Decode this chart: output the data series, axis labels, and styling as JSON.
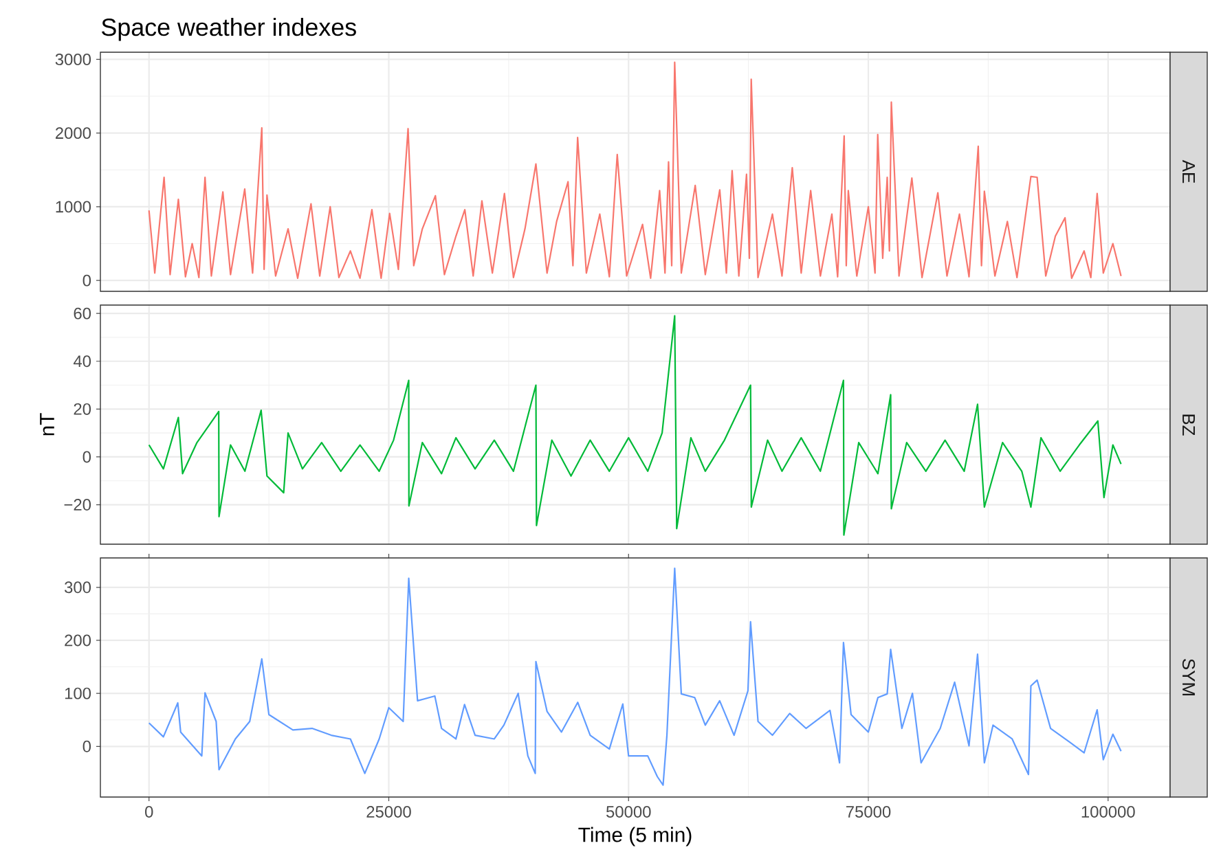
{
  "chart_data": [
    {
      "type": "line",
      "title": "Space weather indexes",
      "tick_labels": "y",
      "grid": true,
      "xlim": [
        -5070,
        106470
      ],
      "xticks": [
        0,
        25000,
        50000,
        75000,
        100000
      ],
      "ylim": [
        -147.5,
        3097.5
      ],
      "yticks": [
        0,
        1000,
        2000,
        3000
      ],
      "x": [
        0,
        600,
        1570,
        2200,
        3060,
        3800,
        4500,
        5200,
        5840,
        6500,
        7700,
        8500,
        9980,
        10800,
        11760,
        12000,
        12300,
        13200,
        14500,
        15500,
        16890,
        17800,
        18890,
        19800,
        21000,
        22000,
        23240,
        24200,
        25090,
        26000,
        27010,
        27600,
        28500,
        29860,
        30800,
        32000,
        32930,
        33800,
        34710,
        35800,
        37060,
        38000,
        39200,
        40340,
        41500,
        42500,
        43690,
        44200,
        44690,
        45600,
        47000,
        48000,
        48820,
        49800,
        51460,
        52300,
        53240,
        53800,
        54170,
        54500,
        54810,
        55500,
        56950,
        58000,
        59510,
        60200,
        60800,
        61500,
        62300,
        62600,
        62790,
        63500,
        65000,
        66000,
        67070,
        68000,
        68990,
        70000,
        71200,
        71800,
        72480,
        72700,
        72910,
        73800,
        75000,
        75700,
        75980,
        76500,
        76970,
        77200,
        77400,
        78200,
        79540,
        80600,
        82250,
        83200,
        84500,
        85500,
        86460,
        86800,
        87100,
        88200,
        89500,
        90500,
        91950,
        92600,
        93500,
        94500,
        95510,
        96200,
        97500,
        98200,
        98860,
        99500,
        100500,
        101350
      ],
      "series": [
        {
          "name": "AE",
          "color": "#f8766d",
          "values": [
            950,
            100,
            1400,
            80,
            1100,
            50,
            500,
            40,
            1400,
            60,
            1200,
            80,
            1240,
            100,
            2070,
            150,
            1160,
            60,
            700,
            30,
            1040,
            60,
            1000,
            40,
            400,
            30,
            960,
            30,
            910,
            150,
            2060,
            200,
            700,
            1150,
            80,
            600,
            960,
            60,
            1080,
            100,
            1180,
            40,
            700,
            1580,
            100,
            800,
            1340,
            200,
            1940,
            100,
            900,
            50,
            1710,
            60,
            760,
            30,
            1220,
            100,
            1610,
            200,
            2960,
            100,
            1290,
            80,
            1230,
            100,
            1490,
            60,
            1440,
            300,
            2730,
            40,
            900,
            60,
            1530,
            100,
            1220,
            60,
            900,
            50,
            1960,
            200,
            1220,
            60,
            1000,
            100,
            1980,
            300,
            1400,
            400,
            2420,
            60,
            1390,
            40,
            1190,
            60,
            900,
            50,
            1820,
            200,
            1210,
            60,
            800,
            40,
            1410,
            1400,
            60,
            600,
            850,
            30,
            400,
            40,
            1180,
            100,
            500,
            60
          ]
        }
      ]
    },
    {
      "type": "line",
      "ylabel": "nT",
      "tick_labels": "y",
      "grid": true,
      "xlim": [
        -5070,
        106470
      ],
      "xticks": [
        0,
        25000,
        50000,
        75000,
        100000
      ],
      "ylim": [
        -36.5,
        63.5
      ],
      "yticks": [
        {
          "value": -20,
          "label": "−20"
        },
        0,
        20,
        40,
        60
      ],
      "x": [
        0,
        1500,
        3060,
        3500,
        5000,
        7270,
        7300,
        8500,
        10000,
        11690,
        12300,
        14040,
        14500,
        16000,
        18000,
        20000,
        22000,
        24000,
        25500,
        27080,
        27100,
        28500,
        30500,
        32000,
        34000,
        36000,
        38000,
        40340,
        40400,
        42000,
        44000,
        46000,
        48000,
        50000,
        52000,
        53500,
        54810,
        55020,
        56500,
        58000,
        60000,
        62720,
        62800,
        64500,
        66000,
        68000,
        70000,
        72410,
        72450,
        74000,
        76000,
        77330,
        77400,
        79000,
        81000,
        83000,
        85000,
        86390,
        87100,
        89000,
        91000,
        91950,
        93000,
        95000,
        97000,
        98930,
        99570,
        100500,
        101350
      ],
      "series": [
        {
          "name": "BZ",
          "color": "#00ba38",
          "values": [
            5,
            -5,
            16.5,
            -7,
            6,
            19,
            -25,
            5,
            -6,
            19.5,
            -8,
            -15,
            10,
            -5,
            6,
            -6,
            5,
            -6,
            7,
            32,
            -20.5,
            6,
            -7,
            8,
            -5,
            7,
            -6,
            30,
            -28.7,
            7,
            -8,
            7,
            -6,
            8,
            -6,
            10,
            59,
            -30,
            8,
            -6,
            7,
            30,
            -21,
            7,
            -6,
            8,
            -6,
            32,
            -32.7,
            6,
            -7,
            26,
            -21.7,
            6,
            -6,
            7,
            -6,
            22,
            -21,
            6,
            -6,
            -21,
            8,
            -6,
            5,
            15,
            -17,
            5,
            -3
          ]
        }
      ]
    },
    {
      "type": "line",
      "xlabel": "Time (5 min)",
      "grid": true,
      "xlim": [
        -5070,
        106470
      ],
      "xticks": [
        0,
        25000,
        50000,
        75000,
        100000
      ],
      "ylim": [
        -95.5,
        355.5
      ],
      "yticks": [
        0,
        100,
        200,
        300
      ],
      "x": [
        0,
        1500,
        3000,
        3300,
        5500,
        5840,
        7000,
        7300,
        9000,
        10500,
        11760,
        12500,
        15000,
        17000,
        19000,
        21000,
        22500,
        24000,
        25000,
        26500,
        27080,
        28000,
        29800,
        30500,
        32000,
        32900,
        34000,
        36000,
        37000,
        38490,
        39500,
        40270,
        40340,
        41500,
        43000,
        44700,
        46000,
        48000,
        49400,
        50000,
        52000,
        53000,
        53600,
        54000,
        54810,
        55500,
        56900,
        58000,
        59500,
        61000,
        62450,
        62720,
        63500,
        65000,
        66800,
        68500,
        71000,
        72000,
        72410,
        73200,
        75000,
        76000,
        76970,
        77330,
        78500,
        79600,
        80500,
        82500,
        84000,
        85500,
        86390,
        87100,
        88000,
        90000,
        91700,
        91950,
        92600,
        94000,
        96000,
        97500,
        98860,
        99500,
        100500,
        101350
      ],
      "series": [
        {
          "name": "SYM",
          "color": "#619cff",
          "values": [
            44,
            18,
            82,
            27,
            -18,
            101,
            47,
            -44,
            14,
            47,
            165,
            60,
            31,
            34,
            21,
            14,
            -51,
            14,
            73,
            47,
            317,
            86,
            95,
            34,
            14,
            79,
            21,
            14,
            40,
            100,
            -18,
            -51,
            160,
            66,
            27,
            83,
            21,
            -5,
            80,
            -18,
            -18,
            -57,
            -73,
            21,
            336,
            99,
            92,
            40,
            86,
            21,
            105,
            235,
            47,
            21,
            62,
            34,
            68,
            -31,
            196,
            60,
            27,
            92,
            99,
            183,
            34,
            100,
            -31,
            34,
            121,
            1,
            174,
            -31,
            40,
            14,
            -53,
            114,
            125,
            34,
            8,
            -12,
            69,
            -25,
            23,
            -9
          ]
        }
      ]
    }
  ]
}
